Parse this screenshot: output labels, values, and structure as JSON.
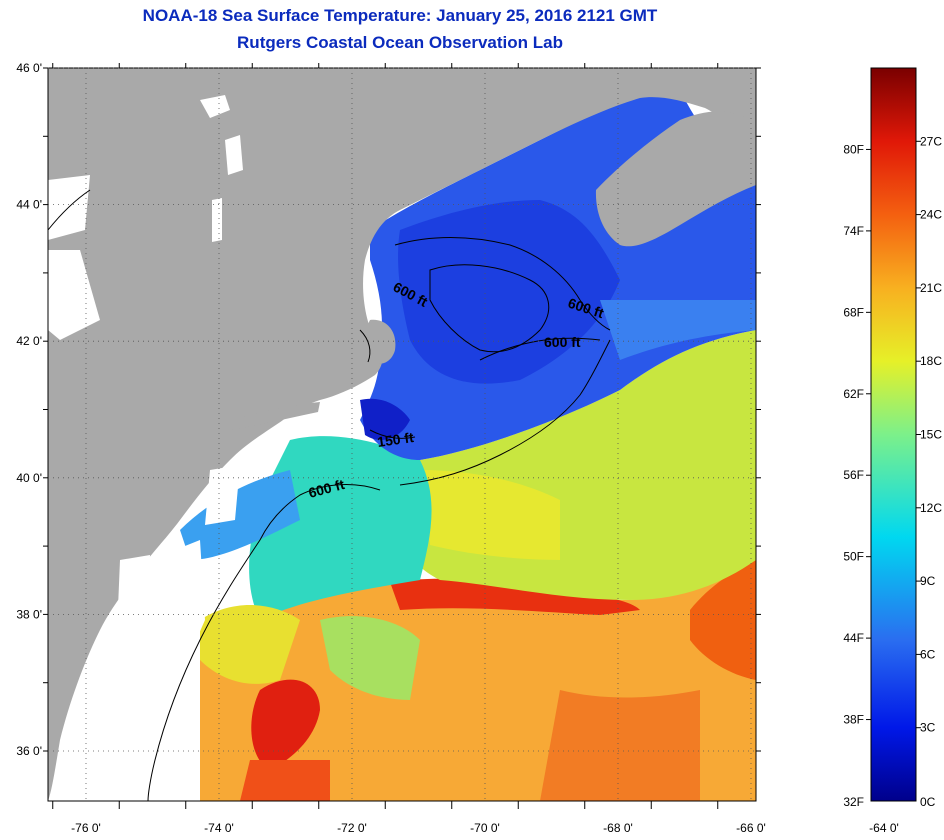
{
  "title": "NOAA-18 Sea Surface Temperature:  January 25, 2016 2121 GMT",
  "subtitle": "Rutgers Coastal Ocean Observation Lab",
  "map": {
    "lat_labels": [
      {
        "lat": 46,
        "label": "46 0'"
      },
      {
        "lat": 44,
        "label": "44 0'"
      },
      {
        "lat": 42,
        "label": "42 0'"
      },
      {
        "lat": 40,
        "label": "40 0'"
      },
      {
        "lat": 38,
        "label": "38 0'"
      },
      {
        "lat": 36,
        "label": "36 0'"
      }
    ],
    "lon_labels": [
      {
        "lon": -76,
        "label": "-76 0'"
      },
      {
        "lon": -74,
        "label": "-74 0'"
      },
      {
        "lon": -72,
        "label": "-72 0'"
      },
      {
        "lon": -70,
        "label": "-70 0'"
      },
      {
        "lon": -68,
        "label": "-68 0'"
      },
      {
        "lon": -66,
        "label": "-66 0'"
      },
      {
        "lon": -64,
        "label": "-64 0'"
      }
    ],
    "contour_labels": [
      "600 ft",
      "600 ft",
      "600 ft",
      "150 ft",
      "600 ft"
    ],
    "colors": {
      "land": "#a9a9a9",
      "cloud": "#ffffff",
      "cold_water": "#1c3fe0",
      "warm_water": "#f04818",
      "mid_water": "#c8e640"
    }
  },
  "colorbar": {
    "fahrenheit": [
      "80F",
      "74F",
      "68F",
      "62F",
      "56F",
      "50F",
      "44F",
      "38F",
      "32F"
    ],
    "celsius": [
      "27C",
      "24C",
      "21C",
      "18C",
      "15C",
      "12C",
      "9C",
      "6C",
      "3C",
      "0C"
    ]
  }
}
